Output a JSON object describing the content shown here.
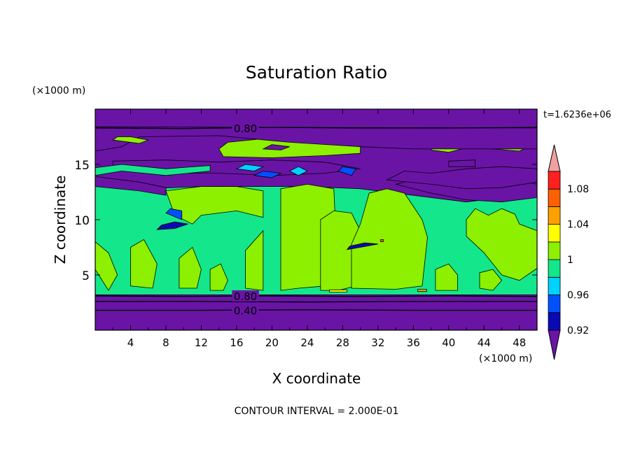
{
  "chart_data": {
    "type": "heatmap",
    "title": "Saturation Ratio",
    "xlabel": "X coordinate",
    "ylabel": "Z coordinate",
    "x_unit": "(×1000 m)",
    "y_unit": "(×1000 m)",
    "time_label": "t=1.6236e+06",
    "footer": "CONTOUR INTERVAL = 2.000E-01",
    "xlim": [
      0,
      50
    ],
    "ylim": [
      0,
      20
    ],
    "x_ticks": [
      4,
      8,
      12,
      16,
      20,
      24,
      28,
      32,
      36,
      40,
      44,
      48
    ],
    "y_ticks": [
      5,
      10,
      15
    ],
    "contour_labels": [
      {
        "text": "0.80",
        "x": 17,
        "y": 18.3
      },
      {
        "text": "0.80",
        "x": 17,
        "y": 3.1
      },
      {
        "text": "0.40",
        "x": 17,
        "y": 1.8
      }
    ],
    "colorbar": {
      "bins": [
        {
          "min": null,
          "max": 0.92,
          "color": "#6a14a6"
        },
        {
          "min": 0.92,
          "max": 0.94,
          "color": "#0a0ab4"
        },
        {
          "min": 0.94,
          "max": 0.96,
          "color": "#0050ff"
        },
        {
          "min": 0.96,
          "max": 0.98,
          "color": "#00d2ff"
        },
        {
          "min": 0.98,
          "max": 1.0,
          "color": "#14e68c"
        },
        {
          "min": 1.0,
          "max": 1.02,
          "color": "#8cf000"
        },
        {
          "min": 1.02,
          "max": 1.04,
          "color": "#ffff00"
        },
        {
          "min": 1.04,
          "max": 1.06,
          "color": "#ffa000"
        },
        {
          "min": 1.06,
          "max": 1.08,
          "color": "#ff6000"
        },
        {
          "min": 1.08,
          "max": 1.1,
          "color": "#ff2020"
        },
        {
          "min": 1.1,
          "max": null,
          "color": "#f0a0a0"
        }
      ],
      "tick_labels": [
        {
          "value": 0.92,
          "text": "0.92"
        },
        {
          "value": 0.96,
          "text": "0.96"
        },
        {
          "value": 1.0,
          "text": "1"
        },
        {
          "value": 1.04,
          "text": "1.04"
        },
        {
          "value": 1.08,
          "text": "1.08"
        }
      ]
    },
    "regions": [
      {
        "level": 0,
        "points": [
          [
            0,
            0
          ],
          [
            50,
            0
          ],
          [
            50,
            20
          ],
          [
            0,
            20
          ]
        ]
      },
      {
        "level": 4,
        "points": [
          [
            0,
            3.2
          ],
          [
            50,
            3.2
          ],
          [
            50,
            12.8
          ],
          [
            46,
            12.0
          ],
          [
            42,
            11.6
          ],
          [
            36,
            12.2
          ],
          [
            30,
            12.8
          ],
          [
            24,
            13.0
          ],
          [
            20,
            13.0
          ],
          [
            16,
            13.0
          ],
          [
            12,
            13.0
          ],
          [
            6,
            12.8
          ],
          [
            0,
            13.3
          ]
        ]
      },
      {
        "level": 0,
        "points": [
          [
            0,
            13.0
          ],
          [
            5,
            12.6
          ],
          [
            8,
            12.2
          ],
          [
            8,
            12.9
          ],
          [
            5,
            13.4
          ],
          [
            0,
            13.9
          ]
        ]
      },
      {
        "level": 0,
        "points": [
          [
            34,
            13.2
          ],
          [
            38,
            12.4
          ],
          [
            42,
            11.8
          ],
          [
            46,
            11.6
          ],
          [
            50,
            12.0
          ],
          [
            50,
            13.2
          ],
          [
            46,
            13.8
          ],
          [
            42,
            13.6
          ],
          [
            38,
            13.4
          ],
          [
            36,
            13.6
          ]
        ]
      },
      {
        "level": 0,
        "points": [
          [
            33,
            13.6
          ],
          [
            38,
            13.2
          ],
          [
            42,
            12.8
          ],
          [
            46,
            12.9
          ],
          [
            50,
            13.4
          ],
          [
            50,
            14.6
          ],
          [
            46,
            14.8
          ],
          [
            42,
            14.6
          ],
          [
            38,
            14.2
          ],
          [
            35,
            14.4
          ]
        ]
      },
      {
        "level": 5,
        "points": [
          [
            8,
            12.6
          ],
          [
            9,
            10.4
          ],
          [
            11,
            9.6
          ],
          [
            12,
            10.4
          ],
          [
            16,
            10.8
          ],
          [
            19,
            10.2
          ],
          [
            19,
            12.6
          ],
          [
            16,
            13.0
          ],
          [
            12,
            13.0
          ]
        ]
      },
      {
        "level": 5,
        "points": [
          [
            17,
            3.8
          ],
          [
            17,
            7.2
          ],
          [
            19,
            9.0
          ],
          [
            19,
            3.6
          ]
        ]
      },
      {
        "level": 5,
        "points": [
          [
            21,
            3.6
          ],
          [
            21,
            12.8
          ],
          [
            24,
            13.2
          ],
          [
            27,
            12.8
          ],
          [
            27.5,
            4.5
          ],
          [
            26,
            4.0
          ],
          [
            23,
            3.8
          ]
        ]
      },
      {
        "level": 5,
        "points": [
          [
            25.5,
            3.6
          ],
          [
            25.5,
            10.0
          ],
          [
            27,
            10.8
          ],
          [
            29,
            10.6
          ],
          [
            30,
            9.0
          ],
          [
            29.5,
            4.0
          ],
          [
            27.5,
            3.6
          ]
        ]
      },
      {
        "level": 5,
        "points": [
          [
            29,
            3.8
          ],
          [
            29,
            7.8
          ],
          [
            30,
            9.6
          ],
          [
            31,
            12.4
          ],
          [
            33,
            12.8
          ],
          [
            35,
            12.4
          ],
          [
            36,
            11.2
          ],
          [
            37,
            10.0
          ],
          [
            37.6,
            8.4
          ],
          [
            37,
            4.0
          ],
          [
            34,
            3.7
          ]
        ]
      },
      {
        "level": 5,
        "points": [
          [
            42,
            10.0
          ],
          [
            43,
            11.0
          ],
          [
            44.5,
            10.4
          ],
          [
            46,
            11.0
          ],
          [
            47.5,
            10.5
          ],
          [
            48,
            9.6
          ],
          [
            50,
            9.0
          ],
          [
            50,
            5.6
          ],
          [
            48,
            4.5
          ],
          [
            46,
            5.0
          ],
          [
            44,
            7.0
          ],
          [
            42,
            8.5
          ]
        ]
      },
      {
        "level": 5,
        "points": [
          [
            38.5,
            3.6
          ],
          [
            38.5,
            5.5
          ],
          [
            40,
            6.0
          ],
          [
            41,
            5.0
          ],
          [
            41,
            3.6
          ]
        ]
      },
      {
        "level": 5,
        "points": [
          [
            0,
            5.5
          ],
          [
            0,
            8.0
          ],
          [
            1.5,
            7.0
          ],
          [
            2.5,
            5.0
          ],
          [
            1.5,
            3.6
          ]
        ]
      },
      {
        "level": 5,
        "points": [
          [
            4,
            4.0
          ],
          [
            4,
            7.5
          ],
          [
            5.5,
            8.2
          ],
          [
            7,
            6.0
          ],
          [
            6.5,
            3.8
          ]
        ]
      },
      {
        "level": 5,
        "points": [
          [
            9.5,
            3.8
          ],
          [
            9.5,
            6.5
          ],
          [
            11,
            7.5
          ],
          [
            12,
            5.5
          ],
          [
            11.5,
            3.8
          ]
        ]
      },
      {
        "level": 5,
        "points": [
          [
            13,
            3.6
          ],
          [
            13,
            5.5
          ],
          [
            14.2,
            6.0
          ],
          [
            15,
            4.5
          ],
          [
            14.5,
            3.6
          ]
        ]
      },
      {
        "level": 5,
        "points": [
          [
            43.5,
            3.8
          ],
          [
            43.5,
            5.2
          ],
          [
            45,
            5.5
          ],
          [
            46,
            4.5
          ],
          [
            45,
            3.6
          ]
        ]
      },
      {
        "level": 5,
        "points": [
          [
            14.5,
            15.7
          ],
          [
            20,
            15.6
          ],
          [
            26,
            15.8
          ],
          [
            30,
            16.0
          ],
          [
            30,
            16.6
          ],
          [
            25,
            17.2
          ],
          [
            20,
            17.4
          ],
          [
            15,
            17.0
          ],
          [
            14,
            16.4
          ]
        ]
      },
      {
        "level": 5,
        "points": [
          [
            38,
            16.3
          ],
          [
            40,
            16.1
          ],
          [
            42,
            16.5
          ],
          [
            43,
            16.7
          ],
          [
            41,
            17.0
          ],
          [
            38.5,
            16.9
          ]
        ]
      },
      {
        "level": 5,
        "points": [
          [
            45,
            16.4
          ],
          [
            48,
            16.2
          ],
          [
            49,
            16.6
          ],
          [
            48,
            16.9
          ],
          [
            45.5,
            16.9
          ]
        ]
      },
      {
        "level": 0,
        "points": [
          [
            19,
            16.4
          ],
          [
            21,
            16.3
          ],
          [
            22,
            16.6
          ],
          [
            20,
            16.8
          ]
        ]
      },
      {
        "level": 0,
        "points": [
          [
            40,
            14.8
          ],
          [
            43,
            14.8
          ],
          [
            43,
            15.4
          ],
          [
            40,
            15.3
          ]
        ]
      },
      {
        "level": 0,
        "points": [
          [
            0,
            16.2
          ],
          [
            3,
            16.6
          ],
          [
            5,
            17.5
          ],
          [
            14,
            17.6
          ],
          [
            22,
            17.0
          ],
          [
            30,
            16.6
          ],
          [
            36,
            16.4
          ],
          [
            42,
            16.4
          ],
          [
            50,
            16.4
          ],
          [
            50,
            18.3
          ],
          [
            0,
            18.4
          ]
        ]
      },
      {
        "level": 5,
        "points": [
          [
            2,
            17.2
          ],
          [
            5,
            16.9
          ],
          [
            6,
            17.2
          ],
          [
            4,
            17.5
          ],
          [
            2.5,
            17.5
          ]
        ]
      },
      {
        "level": 0,
        "points": [
          [
            2,
            14.5
          ],
          [
            8,
            14.2
          ],
          [
            14,
            14.2
          ],
          [
            20,
            14.0
          ],
          [
            26,
            14.2
          ],
          [
            30,
            14.6
          ],
          [
            26,
            15.2
          ],
          [
            20,
            15.4
          ],
          [
            14,
            15.2
          ],
          [
            8,
            15.4
          ],
          [
            2,
            15.3
          ]
        ]
      },
      {
        "level": 4,
        "points": [
          [
            0,
            14.0
          ],
          [
            3,
            14.4
          ],
          [
            8,
            14.0
          ],
          [
            13,
            14.4
          ],
          [
            13,
            14.9
          ],
          [
            8,
            14.6
          ],
          [
            3,
            15.0
          ],
          [
            0,
            14.7
          ]
        ]
      },
      {
        "level": 2,
        "points": [
          [
            8,
            10.6
          ],
          [
            9.8,
            10.0
          ],
          [
            9.8,
            10.8
          ],
          [
            8.5,
            11.0
          ]
        ]
      },
      {
        "level": 1,
        "points": [
          [
            7,
            9.1
          ],
          [
            9,
            9.2
          ],
          [
            10.5,
            9.6
          ],
          [
            9,
            9.8
          ],
          [
            7.5,
            9.5
          ]
        ]
      },
      {
        "level": 1,
        "points": [
          [
            28.5,
            7.3
          ],
          [
            30,
            7.5
          ],
          [
            32,
            7.8
          ],
          [
            30.5,
            7.9
          ],
          [
            28.8,
            7.6
          ]
        ]
      },
      {
        "level": 3,
        "points": [
          [
            22,
            14.4
          ],
          [
            23,
            14.0
          ],
          [
            24,
            14.4
          ],
          [
            23,
            14.8
          ]
        ]
      },
      {
        "level": 3,
        "points": [
          [
            16,
            14.6
          ],
          [
            18,
            14.4
          ],
          [
            19,
            14.8
          ],
          [
            17,
            15.0
          ]
        ]
      },
      {
        "level": 2,
        "points": [
          [
            18,
            14.0
          ],
          [
            20,
            13.8
          ],
          [
            21,
            14.2
          ],
          [
            19,
            14.4
          ]
        ]
      },
      {
        "level": 2,
        "points": [
          [
            27.5,
            14.4
          ],
          [
            29,
            14.0
          ],
          [
            29.5,
            14.6
          ],
          [
            28,
            14.8
          ]
        ]
      },
      {
        "level": 6,
        "points": [
          [
            26.5,
            3.45
          ],
          [
            28.5,
            3.45
          ],
          [
            28.5,
            3.65
          ],
          [
            26.5,
            3.65
          ]
        ]
      },
      {
        "level": 7,
        "points": [
          [
            36.5,
            3.5
          ],
          [
            37.5,
            3.5
          ],
          [
            37.5,
            3.7
          ],
          [
            36.5,
            3.7
          ]
        ]
      },
      {
        "level": 8,
        "points": [
          [
            32.3,
            8.0
          ],
          [
            32.6,
            8.0
          ],
          [
            32.6,
            8.2
          ],
          [
            32.3,
            8.2
          ]
        ]
      }
    ],
    "contour_lines": [
      [
        [
          0,
          18.3
        ],
        [
          10,
          18.25
        ],
        [
          20,
          18.35
        ],
        [
          30,
          18.3
        ],
        [
          40,
          18.3
        ],
        [
          50,
          18.35
        ]
      ],
      [
        [
          0,
          3.1
        ],
        [
          10,
          3.05
        ],
        [
          20,
          3.1
        ],
        [
          30,
          3.05
        ],
        [
          40,
          3.1
        ],
        [
          50,
          3.05
        ]
      ],
      [
        [
          0,
          2.6
        ],
        [
          12,
          2.6
        ],
        [
          24,
          2.55
        ],
        [
          36,
          2.6
        ],
        [
          50,
          2.6
        ]
      ],
      [
        [
          0,
          1.8
        ],
        [
          12,
          1.8
        ],
        [
          24,
          1.85
        ],
        [
          36,
          1.8
        ],
        [
          50,
          1.8
        ]
      ]
    ]
  }
}
